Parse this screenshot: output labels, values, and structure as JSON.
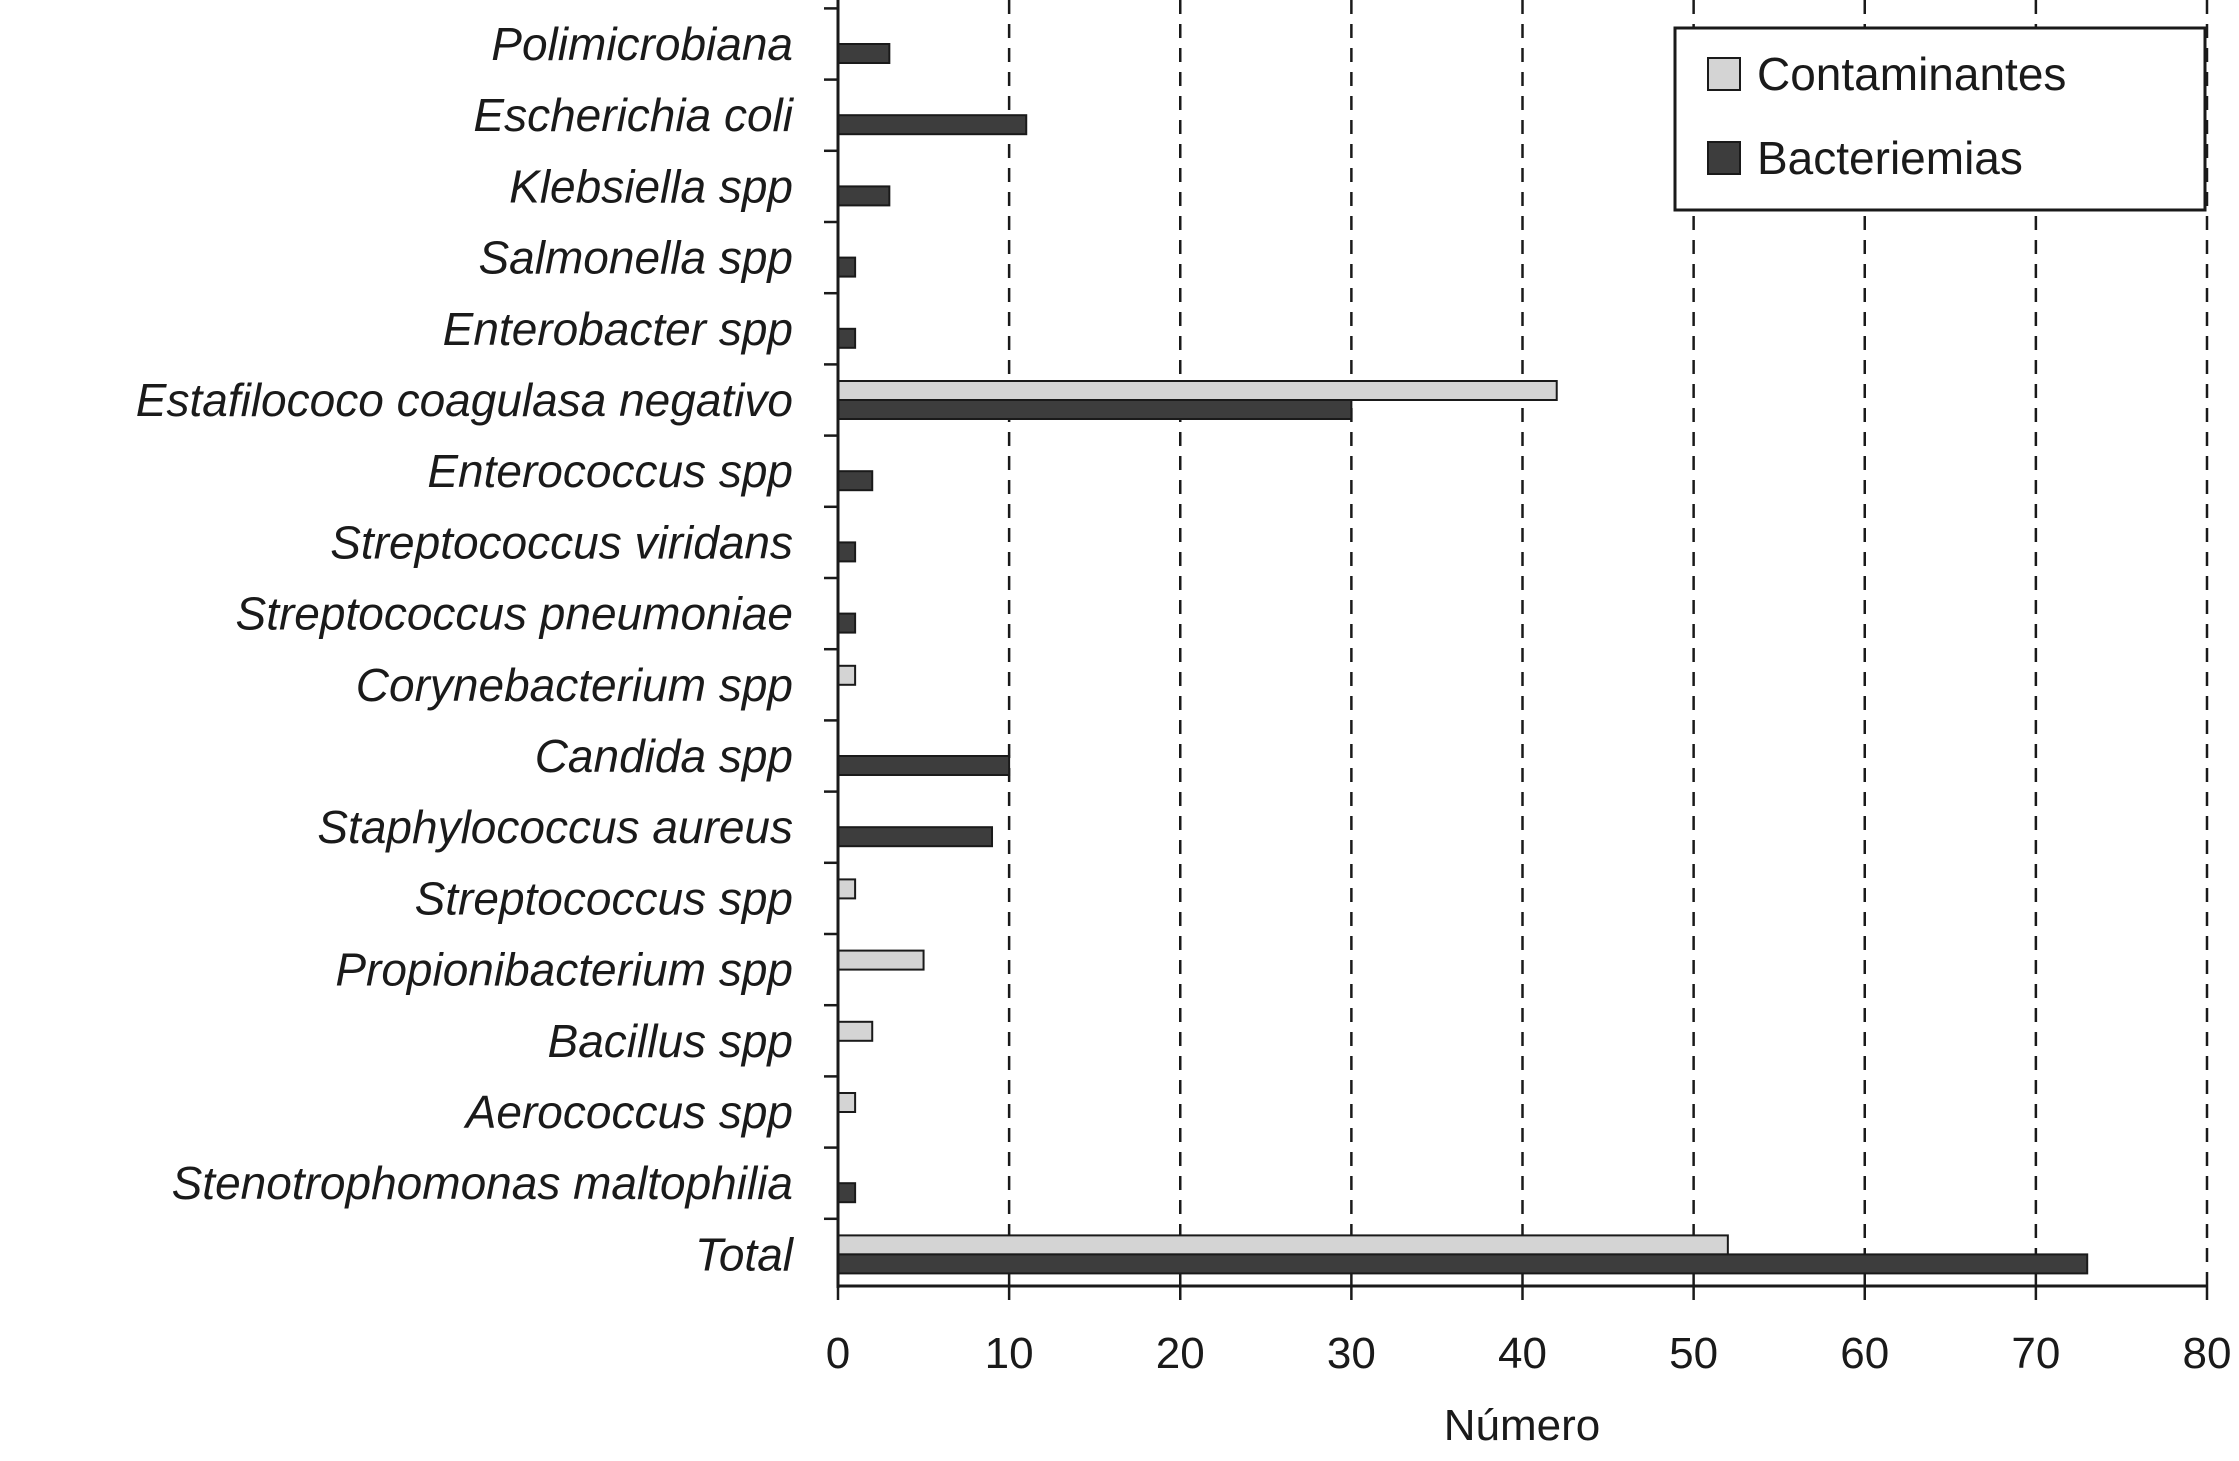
{
  "chart_data": {
    "type": "bar",
    "orientation": "horizontal",
    "categories": [
      "Polimicrobiana",
      "Escherichia coli",
      "Klebsiella spp",
      "Salmonella spp",
      "Enterobacter spp",
      "Estafilococo coagulasa negativo",
      "Enterococcus spp",
      "Streptococcus viridans",
      "Streptococcus pneumoniae",
      "Corynebacterium spp",
      "Candida spp",
      "Staphylococcus aureus",
      "Streptococcus spp",
      "Propionibacterium spp",
      "Bacillus spp",
      "Aerococcus spp",
      "Stenotrophomonas maltophilia",
      "Total"
    ],
    "series": [
      {
        "name": "Contaminantes",
        "color": "#d4d4d4",
        "values": [
          0,
          0,
          0,
          0,
          0,
          42,
          0,
          0,
          0,
          1,
          0,
          0,
          1,
          5,
          2,
          1,
          0,
          52
        ]
      },
      {
        "name": "Bacteriemias",
        "color": "#3d3d3d",
        "values": [
          3,
          11,
          3,
          1,
          1,
          30,
          2,
          1,
          1,
          0,
          10,
          9,
          0,
          0,
          0,
          0,
          1,
          73
        ]
      }
    ],
    "xlabel": "Número",
    "ylabel": "",
    "xlim": [
      0,
      80
    ],
    "xticks": [
      0,
      10,
      20,
      30,
      40,
      50,
      60,
      70,
      80
    ],
    "grid": "vertical dashed",
    "legend": "top-right"
  }
}
